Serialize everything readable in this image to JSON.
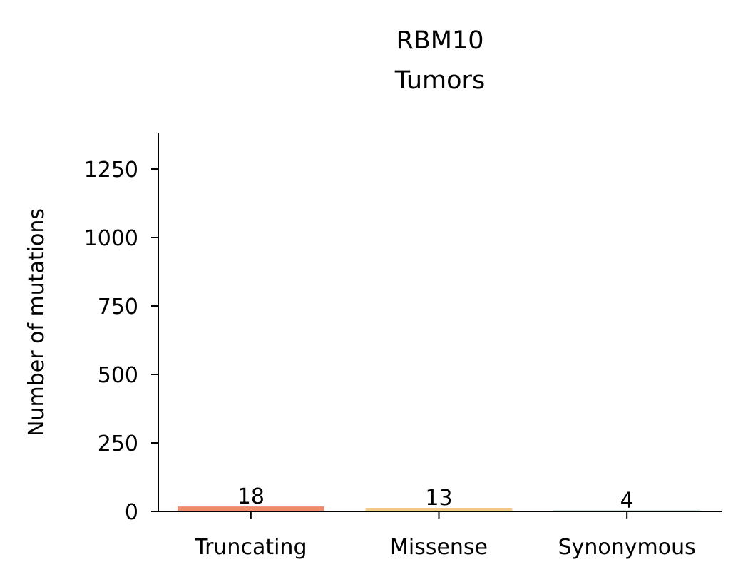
{
  "chart_data": {
    "type": "bar",
    "title_lines": [
      "RBM10",
      "Tumors"
    ],
    "xlabel": "",
    "ylabel": "Number of mutations",
    "categories": [
      "Truncating",
      "Missense",
      "Synonymous"
    ],
    "values": [
      18,
      13,
      4
    ],
    "value_labels": [
      "18",
      "13",
      "4"
    ],
    "colors": [
      "#EF8A6E",
      "#F5C98A",
      "#9FD4B5"
    ],
    "ylim": [
      0,
      1385
    ],
    "yticks": [
      0,
      250,
      500,
      750,
      1000,
      1250
    ],
    "ytick_labels": [
      "0",
      "250",
      "500",
      "750",
      "1000",
      "1250"
    ],
    "grid": false,
    "legend": "none"
  }
}
